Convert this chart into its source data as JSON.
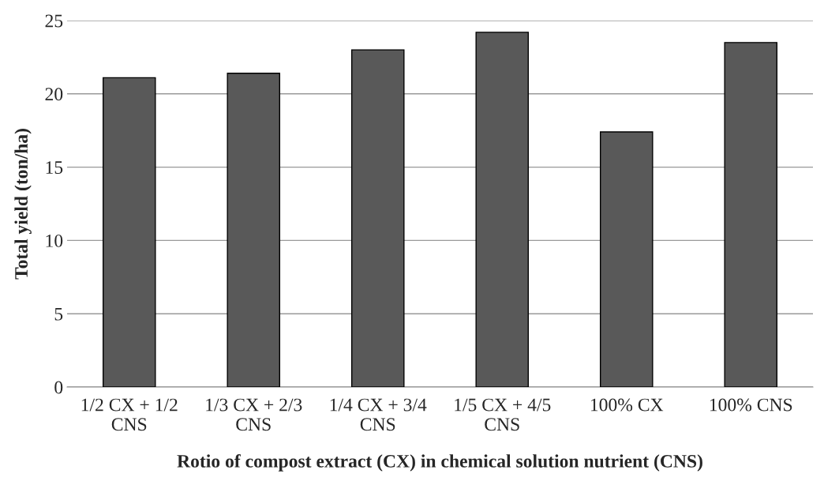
{
  "chart_data": {
    "type": "bar",
    "xlabel": "Rotio of compost extract (CX) in chemical solution nutrient (CNS)",
    "ylabel": "Total yield (ton/ha)",
    "categories": [
      "1/2 CX + 1/2 CNS",
      "1/3 CX + 2/3 CNS",
      "1/4 CX + 3/4 CNS",
      "1/5 CX + 4/5 CNS",
      "100% CX",
      "100% CNS"
    ],
    "values": [
      21.1,
      21.4,
      23.0,
      24.2,
      17.4,
      23.5
    ],
    "color": "#595959",
    "ylim": [
      0,
      25
    ],
    "yticks": [
      0,
      5,
      10,
      15,
      20,
      25
    ],
    "grid": "y"
  }
}
